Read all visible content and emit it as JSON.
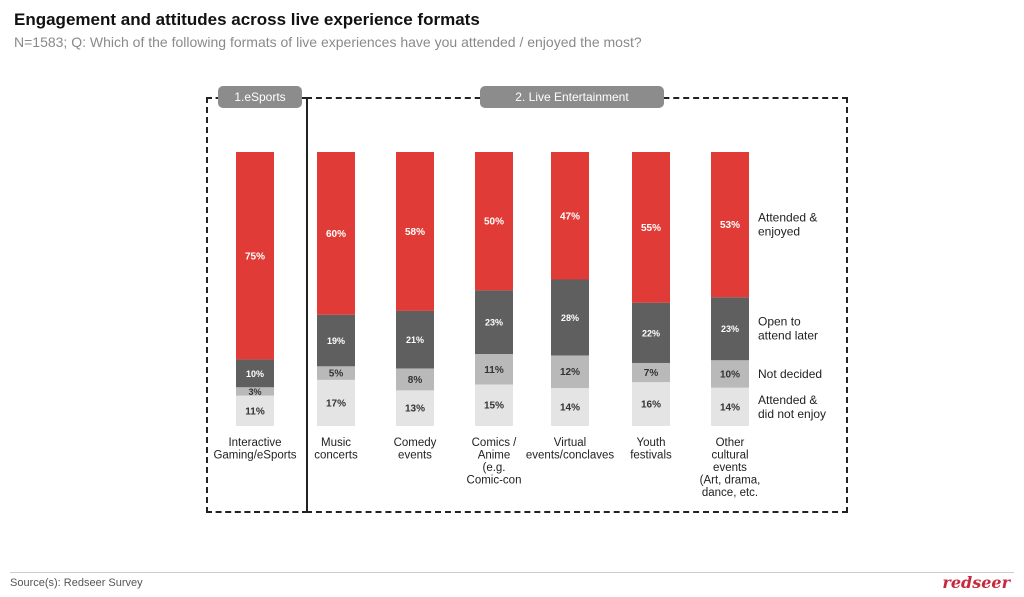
{
  "title": "Engagement and attitudes across live experience formats",
  "subtitle": "N=1583; Q: Which of the following formats of live experiences have you attended / enjoyed the most?",
  "groups": {
    "esports": "1.eSports",
    "live": "2. Live Entertainment"
  },
  "colors": {
    "enjoyed": "#e03b36",
    "open": "#5f5f5f",
    "undecided": "#b9b9b9",
    "not_enjoy": "#e4e4e4"
  },
  "chart_data": {
    "type": "bar",
    "stacked": true,
    "normalized": true,
    "title": "Engagement and attitudes across live experience formats",
    "categories": [
      [
        "Interactive",
        "Gaming/eSports"
      ],
      [
        "Music",
        "concerts"
      ],
      [
        "Comedy",
        "events"
      ],
      [
        "Comics /",
        "Anime",
        "(e.g.",
        "Comic-con"
      ],
      [
        "Virtual",
        "events/conclaves"
      ],
      [
        "Youth",
        "festivals"
      ],
      [
        "Other",
        "cultural",
        "events",
        "(Art, drama,",
        "dance, etc."
      ]
    ],
    "series": [
      {
        "key": "not_enjoy",
        "name": [
          "Attended &",
          "did not enjoy"
        ],
        "values": [
          11,
          17,
          13,
          15,
          14,
          16,
          14
        ]
      },
      {
        "key": "undecided",
        "name": [
          "Not decided"
        ],
        "values": [
          3,
          5,
          8,
          11,
          12,
          7,
          10
        ]
      },
      {
        "key": "open",
        "name": [
          "Open to",
          "attend later"
        ],
        "values": [
          10,
          19,
          21,
          23,
          28,
          22,
          23
        ]
      },
      {
        "key": "enjoyed",
        "name": [
          "Attended &",
          "enjoyed"
        ],
        "values": [
          75,
          60,
          58,
          50,
          47,
          55,
          53
        ]
      }
    ]
  },
  "footer": {
    "source": "Source(s): Redseer Survey",
    "brand": "redseer"
  }
}
